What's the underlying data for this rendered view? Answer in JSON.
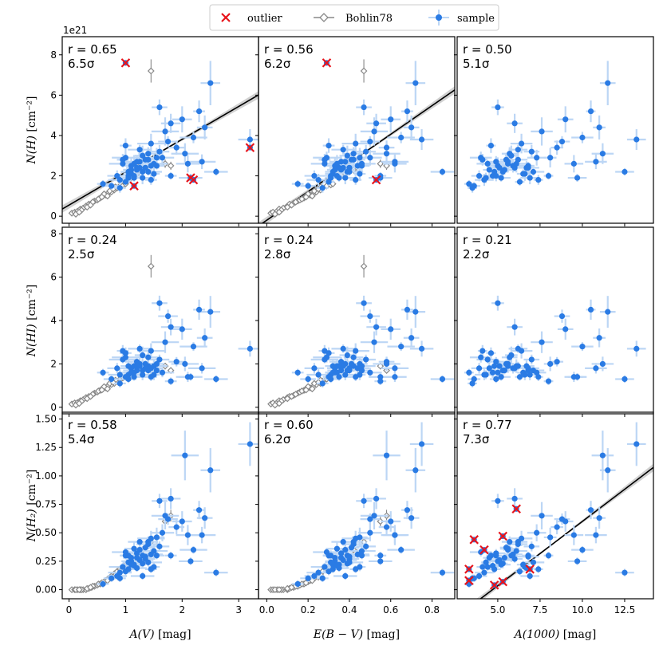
{
  "figure": {
    "offset_label": "1e21",
    "legend": [
      {
        "key": "outlier",
        "label": "outlier",
        "color": "#e8141b"
      },
      {
        "key": "bohlin",
        "label": "Bohlin78",
        "color": "#888888"
      },
      {
        "key": "sample",
        "label": "sample",
        "color": "#2a7be4"
      }
    ],
    "colors": {
      "sample": "#2a7be4",
      "sample_err": "#bcd6f5",
      "bohlin": "#888888",
      "outlier": "#e8141b",
      "fit": "#000000",
      "fit_band": "#bdbdbd"
    }
  },
  "chart_data": {
    "type": "scatter",
    "x_axes": [
      {
        "label_main": "A(V)",
        "label_unit": "[mag]",
        "ticks": [
          0,
          1,
          2,
          3
        ],
        "tick_labels": [
          "0",
          "1",
          "2",
          "3"
        ],
        "xlim": [
          -0.12,
          3.35
        ]
      },
      {
        "label_main": "E(B − V)",
        "label_unit": "[mag]",
        "ticks": [
          0.0,
          0.2,
          0.4,
          0.6,
          0.8
        ],
        "tick_labels": [
          "0.0",
          "0.2",
          "0.4",
          "0.6",
          "0.8"
        ],
        "xlim": [
          -0.04,
          0.91
        ]
      },
      {
        "label_main": "A(1000)",
        "label_unit": "[mag]",
        "ticks": [
          5.0,
          7.5,
          10.0,
          12.5
        ],
        "tick_labels": [
          "5.0",
          "7.5",
          "10.0",
          "12.5"
        ],
        "xlim": [
          2.6,
          14.2
        ]
      }
    ],
    "y_axes": [
      {
        "label_main": "N(H)",
        "label_unit": "[cm⁻²]",
        "ticks": [
          0,
          2,
          4,
          6,
          8
        ],
        "tick_labels": [
          "0",
          "2",
          "4",
          "6",
          "8"
        ],
        "ylim": [
          -0.35,
          8.9
        ]
      },
      {
        "label_main": "N(HI)",
        "label_unit": "[cm⁻²]",
        "ticks": [
          0,
          2,
          4,
          6,
          8
        ],
        "tick_labels": [
          "0",
          "2",
          "4",
          "6",
          "8"
        ],
        "ylim": [
          -0.3,
          8.3
        ]
      },
      {
        "label_main": "N(H₂)",
        "label_unit": "[cm⁻²]",
        "ticks": [
          0.0,
          0.25,
          0.5,
          0.75,
          1.0,
          1.25,
          1.5
        ],
        "tick_labels": [
          "0.00",
          "0.25",
          "0.50",
          "0.75",
          "1.00",
          "1.25",
          "1.50"
        ],
        "ylim": [
          -0.08,
          1.56
        ]
      }
    ],
    "panels": [
      {
        "r": "r = 0.65",
        "sig": "6.5σ",
        "fit": [
          0.55,
          1.63
        ],
        "outliers": [
          [
            1.0,
            7.6
          ],
          [
            1.15,
            1.5
          ],
          [
            2.15,
            1.9
          ],
          [
            2.2,
            1.8
          ],
          [
            3.2,
            3.4
          ]
        ]
      },
      {
        "r": "r = 0.56",
        "sig": "6.2σ",
        "fit": [
          -0.2,
          7.1
        ],
        "outliers": [
          [
            0.29,
            7.6
          ],
          [
            0.53,
            1.8
          ]
        ]
      },
      {
        "r": "r = 0.50",
        "sig": "5.1σ",
        "fit": null,
        "outliers": []
      },
      {
        "r": "r = 0.24",
        "sig": "2.5σ",
        "fit": null,
        "outliers": []
      },
      {
        "r": "r = 0.24",
        "sig": "2.8σ",
        "fit": null,
        "outliers": []
      },
      {
        "r": "r = 0.21",
        "sig": "2.2σ",
        "fit": null,
        "outliers": []
      },
      {
        "r": "r = 0.58",
        "sig": "5.4σ",
        "fit": null,
        "outliers": []
      },
      {
        "r": "r = 0.60",
        "sig": "6.2σ",
        "fit": null,
        "outliers": []
      },
      {
        "r": "r = 0.77",
        "sig": "7.3σ",
        "fit": [
          -0.53,
          0.113
        ],
        "outliers": [
          [
            3.3,
            0.18
          ],
          [
            3.3,
            0.08
          ],
          [
            3.6,
            0.44
          ],
          [
            4.2,
            0.35
          ],
          [
            4.8,
            0.04
          ],
          [
            5.3,
            0.47
          ],
          [
            5.3,
            0.07
          ],
          [
            6.1,
            0.71
          ],
          [
            6.9,
            0.18
          ]
        ]
      }
    ],
    "bohlin": {
      "av": [
        0.05,
        0.1,
        0.15,
        0.2,
        0.25,
        0.3,
        0.35,
        0.4,
        0.45,
        0.5,
        0.55,
        0.6,
        0.65,
        0.7,
        0.75,
        0.8,
        0.85,
        0.9,
        0.95,
        1.0,
        0.12,
        0.22,
        0.32,
        0.42,
        0.52,
        0.62,
        0.72,
        0.82,
        0.92,
        1.1,
        1.2,
        1.3,
        1.45,
        1.7,
        1.8,
        0.18,
        0.38,
        0.58,
        0.68,
        0.78
      ],
      "ebv": [
        0.02,
        0.03,
        0.05,
        0.06,
        0.08,
        0.1,
        0.11,
        0.13,
        0.15,
        0.16,
        0.18,
        0.19,
        0.21,
        0.23,
        0.24,
        0.26,
        0.27,
        0.29,
        0.31,
        0.32,
        0.04,
        0.07,
        0.1,
        0.14,
        0.17,
        0.2,
        0.23,
        0.26,
        0.3,
        0.35,
        0.38,
        0.42,
        0.47,
        0.55,
        0.58,
        0.06,
        0.12,
        0.19,
        0.22,
        0.25
      ],
      "nh": [
        0.15,
        0.2,
        0.25,
        0.35,
        0.4,
        0.5,
        0.6,
        0.65,
        0.75,
        0.8,
        0.9,
        1.0,
        1.05,
        1.15,
        1.2,
        1.3,
        1.4,
        1.5,
        1.55,
        1.6,
        0.1,
        0.3,
        0.45,
        0.7,
        0.85,
        1.1,
        1.25,
        1.45,
        1.7,
        1.9,
        2.1,
        2.3,
        7.2,
        2.6,
        2.5,
        0.2,
        0.55,
        0.95,
        1.0,
        1.35
      ],
      "nhi": [
        0.15,
        0.2,
        0.22,
        0.3,
        0.35,
        0.45,
        0.5,
        0.55,
        0.65,
        0.7,
        0.78,
        0.85,
        0.9,
        1.0,
        1.05,
        1.1,
        1.2,
        1.3,
        1.35,
        1.4,
        0.1,
        0.28,
        0.4,
        0.6,
        0.75,
        0.95,
        1.1,
        1.25,
        1.45,
        1.6,
        1.7,
        1.8,
        6.5,
        1.9,
        1.7,
        0.18,
        0.5,
        0.8,
        0.85,
        1.15
      ],
      "nh2": [
        0.0,
        0.0,
        0.0,
        0.0,
        0.0,
        0.0,
        0.01,
        0.02,
        0.03,
        0.04,
        0.05,
        0.06,
        0.08,
        0.1,
        0.12,
        0.14,
        0.16,
        0.18,
        0.2,
        0.22,
        0.0,
        0.0,
        0.01,
        0.03,
        0.05,
        0.07,
        0.1,
        0.13,
        0.17,
        0.25,
        0.3,
        0.35,
        0.42,
        0.6,
        0.65,
        0.0,
        0.02,
        0.06,
        0.08,
        0.11
      ]
    },
    "sample": {
      "av": [
        0.6,
        0.75,
        0.85,
        0.9,
        0.95,
        1.0,
        1.05,
        1.1,
        1.15,
        1.2,
        1.25,
        1.3,
        1.35,
        1.4,
        1.45,
        1.5,
        1.55,
        1.6,
        1.65,
        1.7,
        1.8,
        1.9,
        2.0,
        2.1,
        2.2,
        2.3,
        2.4,
        2.5,
        2.6,
        1.0,
        1.05,
        1.1,
        1.15,
        1.2,
        1.25,
        1.3,
        1.35,
        1.4,
        1.45,
        1.5,
        1.0,
        1.1,
        1.2,
        1.3,
        1.4,
        0.95,
        1.05,
        1.15,
        1.25,
        1.35,
        1.45,
        1.55,
        1.75,
        2.15,
        2.35,
        0.9,
        1.6,
        1.8,
        3.2,
        2.05
      ],
      "ebv": [
        0.15,
        0.2,
        0.23,
        0.25,
        0.28,
        0.3,
        0.32,
        0.33,
        0.35,
        0.36,
        0.38,
        0.39,
        0.4,
        0.42,
        0.43,
        0.45,
        0.46,
        0.48,
        0.5,
        0.52,
        0.55,
        0.58,
        0.6,
        0.62,
        0.65,
        0.68,
        0.7,
        0.72,
        0.85,
        0.29,
        0.31,
        0.33,
        0.34,
        0.36,
        0.37,
        0.39,
        0.41,
        0.42,
        0.44,
        0.46,
        0.3,
        0.32,
        0.35,
        0.38,
        0.4,
        0.28,
        0.31,
        0.34,
        0.37,
        0.4,
        0.43,
        0.45,
        0.5,
        0.55,
        0.62,
        0.27,
        0.47,
        0.53,
        0.75,
        0.58
      ],
      "a1000": [
        3.3,
        3.6,
        3.9,
        4.2,
        4.4,
        4.6,
        4.8,
        5.0,
        5.2,
        5.4,
        5.6,
        5.8,
        6.0,
        6.2,
        6.4,
        6.6,
        6.8,
        7.0,
        7.3,
        7.6,
        8.0,
        8.5,
        9.0,
        9.5,
        10.0,
        10.5,
        11.0,
        11.5,
        12.5,
        4.0,
        4.3,
        4.5,
        4.7,
        4.9,
        5.1,
        5.3,
        5.5,
        5.7,
        5.9,
        6.1,
        6.3,
        6.5,
        6.7,
        6.9,
        7.1,
        4.1,
        4.9,
        5.6,
        6.2,
        6.8,
        7.4,
        8.1,
        8.8,
        9.7,
        10.8,
        3.5,
        5.0,
        6.0,
        13.2,
        11.2
      ],
      "nh": [
        1.6,
        1.5,
        2.0,
        1.8,
        2.6,
        3.5,
        2.2,
        2.5,
        1.9,
        2.3,
        2.7,
        3.0,
        2.4,
        2.8,
        3.6,
        2.1,
        2.5,
        3.2,
        2.9,
        4.2,
        2.0,
        3.4,
        4.8,
        2.6,
        3.9,
        5.2,
        4.4,
        6.6,
        2.2,
        2.9,
        1.9,
        2.3,
        2.0,
        2.7,
        2.4,
        2.2,
        2.8,
        3.1,
        2.5,
        2.6,
        1.7,
        2.1,
        2.4,
        1.9,
        2.2,
        2.8,
        2.0,
        2.6,
        3.3,
        2.4,
        1.8,
        2.9,
        3.7,
        1.9,
        2.7,
        1.4,
        5.4,
        4.6,
        3.8,
        3.1
      ],
      "nhi": [
        1.6,
        1.3,
        1.8,
        1.5,
        2.2,
        2.5,
        1.9,
        1.6,
        1.4,
        1.7,
        2.0,
        2.4,
        1.8,
        1.9,
        2.6,
        1.5,
        1.7,
        2.2,
        1.6,
        3.0,
        1.2,
        2.1,
        3.6,
        1.4,
        2.8,
        4.5,
        3.2,
        4.4,
        1.3,
        2.3,
        1.5,
        1.8,
        1.6,
        2.1,
        1.9,
        1.7,
        2.0,
        2.3,
        1.8,
        1.9,
        1.4,
        1.6,
        1.9,
        1.5,
        1.7,
        2.6,
        1.3,
        1.9,
        2.7,
        1.8,
        1.4,
        2.0,
        4.2,
        1.4,
        1.8,
        1.1,
        4.8,
        3.7,
        2.7,
        2.0
      ],
      "nh2": [
        0.05,
        0.1,
        0.12,
        0.15,
        0.2,
        0.3,
        0.18,
        0.25,
        0.22,
        0.28,
        0.35,
        0.3,
        0.27,
        0.4,
        0.45,
        0.2,
        0.3,
        0.38,
        0.5,
        0.65,
        0.3,
        0.55,
        0.6,
        0.48,
        0.35,
        0.7,
        0.63,
        1.05,
        0.15,
        0.33,
        0.24,
        0.28,
        0.21,
        0.32,
        0.26,
        0.23,
        0.37,
        0.42,
        0.31,
        0.34,
        0.16,
        0.22,
        0.19,
        0.12,
        0.24,
        0.2,
        0.3,
        0.36,
        0.42,
        0.29,
        0.18,
        0.46,
        0.62,
        0.25,
        0.48,
        0.1,
        0.78,
        0.8,
        1.28,
        1.18
      ]
    }
  }
}
